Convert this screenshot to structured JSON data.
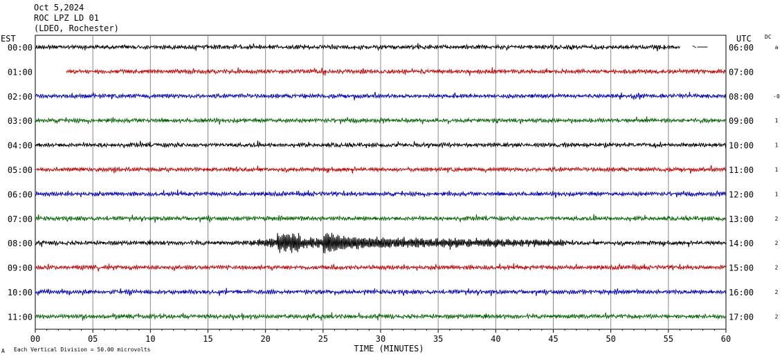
{
  "header": {
    "date": "Oct 5,2024",
    "station": "ROC LPZ LD 01",
    "network": "(LDEO, Rochester)"
  },
  "left_zone": "EST",
  "right_zone": "UTC",
  "dc_header": "DC",
  "footer_note": "Each Vertical Division =   50.00 microvolts",
  "footer_mark": "A",
  "colors": {
    "cycle": [
      "#000000",
      "#cc0000",
      "#0000cc",
      "#006600"
    ],
    "grid": "#888888"
  },
  "chart_data": {
    "type": "line",
    "title": "",
    "xlabel": "TIME (MINUTES)",
    "ylabel": "",
    "xlim": [
      0,
      60
    ],
    "x_ticks": [
      "00",
      "05",
      "10",
      "15",
      "20",
      "25",
      "30",
      "35",
      "40",
      "45",
      "50",
      "55",
      "60"
    ],
    "vertical_division_microvolts": 50.0,
    "rows": [
      {
        "est": "00:00",
        "utc": "06:00",
        "dc": "a",
        "start_min": 0,
        "end_min": 56,
        "event": null
      },
      {
        "est": "01:00",
        "utc": "07:00",
        "dc": "",
        "start_min": 2.7,
        "end_min": 60,
        "event": null
      },
      {
        "est": "02:00",
        "utc": "08:00",
        "dc": "-0",
        "start_min": 0,
        "end_min": 60,
        "event": null
      },
      {
        "est": "03:00",
        "utc": "09:00",
        "dc": "1",
        "start_min": 0,
        "end_min": 60,
        "event": null
      },
      {
        "est": "04:00",
        "utc": "10:00",
        "dc": "1",
        "start_min": 0,
        "end_min": 60,
        "event": null
      },
      {
        "est": "05:00",
        "utc": "11:00",
        "dc": "1",
        "start_min": 0,
        "end_min": 60,
        "event": null
      },
      {
        "est": "06:00",
        "utc": "12:00",
        "dc": "1",
        "start_min": 0,
        "end_min": 60,
        "event": null
      },
      {
        "est": "07:00",
        "utc": "13:00",
        "dc": "2",
        "start_min": 0,
        "end_min": 60,
        "event": null
      },
      {
        "est": "08:00",
        "utc": "14:00",
        "dc": "2",
        "start_min": 0,
        "end_min": 60,
        "event": {
          "onset_min": 18.5,
          "peak_min": 25.8,
          "end_min": 46
        }
      },
      {
        "est": "09:00",
        "utc": "15:00",
        "dc": "2",
        "start_min": 0,
        "end_min": 60,
        "event": null
      },
      {
        "est": "10:00",
        "utc": "16:00",
        "dc": "2",
        "start_min": 0,
        "end_min": 60,
        "event": null
      },
      {
        "est": "11:00",
        "utc": "17:00",
        "dc": "2",
        "start_min": 0,
        "end_min": 60,
        "event": null
      }
    ]
  }
}
